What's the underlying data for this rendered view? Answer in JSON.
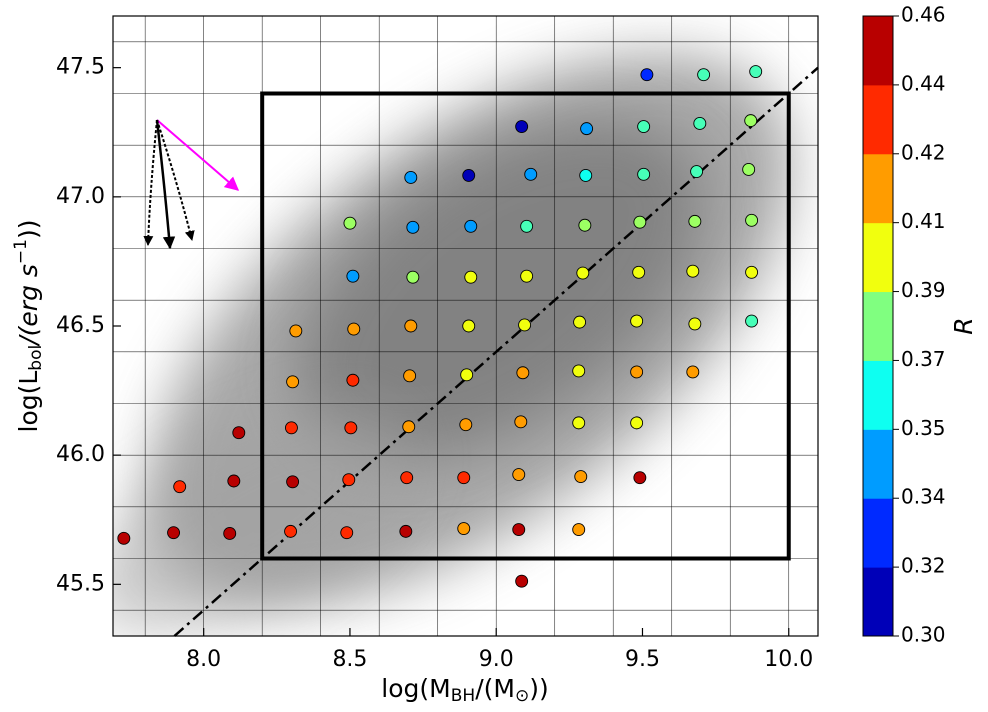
{
  "chart_data": {
    "type": "scatter",
    "xlabel": [
      "log(M",
      "BH",
      "/(M",
      "⊙",
      "))"
    ],
    "ylabel": [
      "log(L",
      "bol",
      "/(erg s",
      "−1",
      "))"
    ],
    "xlim": [
      7.69,
      10.1
    ],
    "ylim": [
      45.3,
      47.7
    ],
    "xticks": [
      {
        "value": 8,
        "label": "8.0"
      },
      8.5,
      {
        "value": 9,
        "label": "9.0"
      },
      9.5,
      {
        "value": 10,
        "label": "10.0"
      }
    ],
    "yticks": [
      45.5,
      {
        "value": 46,
        "label": "46.0"
      },
      46.5,
      {
        "value": 47,
        "label": "47.0"
      },
      47.5
    ],
    "xgrid": [
      7.8,
      8.0,
      8.2,
      8.4,
      8.6,
      8.8,
      9.0,
      9.2,
      9.4,
      9.6,
      9.8,
      10.0
    ],
    "ygrid": [
      45.4,
      45.6,
      45.8,
      46.0,
      46.2,
      46.4,
      46.6,
      46.8,
      47.0,
      47.2,
      47.4,
      47.6
    ],
    "grid": true,
    "box": {
      "x": [
        8.2,
        10.0
      ],
      "y": [
        45.6,
        47.4
      ]
    },
    "line": {
      "x": [
        7.9,
        10.1
      ],
      "y": [
        45.3,
        47.5
      ]
    },
    "colormap": "jet",
    "colorbar": {
      "label": "R",
      "ticks": [
        {
          "value": 0.3,
          "label": "0.30"
        },
        0.32,
        0.34,
        0.35,
        0.37,
        0.39,
        0.41,
        0.42,
        0.44,
        0.46
      ]
    },
    "points": {
      "x": [
        7.727,
        7.897,
        7.918,
        8.089,
        8.103,
        8.12,
        8.304,
        8.297,
        8.3,
        8.304,
        8.315,
        8.489,
        8.496,
        8.503,
        8.51,
        8.513,
        8.51,
        8.5,
        8.691,
        8.694,
        8.701,
        8.704,
        8.708,
        8.715,
        8.715,
        8.708,
        8.889,
        8.889,
        8.896,
        8.899,
        8.906,
        8.913,
        8.913,
        8.906,
        9.077,
        9.087,
        9.077,
        9.084,
        9.091,
        9.097,
        9.104,
        9.104,
        9.118,
        9.087,
        9.282,
        9.289,
        9.282,
        9.282,
        9.285,
        9.296,
        9.303,
        9.306,
        9.309,
        9.491,
        9.48,
        9.48,
        9.48,
        9.487,
        9.491,
        9.504,
        9.504,
        9.515,
        9.672,
        9.679,
        9.672,
        9.679,
        9.685,
        9.696,
        9.709,
        9.873,
        9.873,
        9.873,
        9.863,
        9.87,
        9.887
      ],
      "y": [
        45.678,
        45.7,
        45.878,
        45.697,
        45.9,
        46.087,
        45.897,
        45.705,
        46.106,
        46.284,
        46.481,
        45.7,
        45.905,
        46.106,
        46.29,
        46.488,
        46.693,
        46.898,
        45.705,
        45.913,
        46.11,
        46.307,
        46.5,
        46.689,
        46.882,
        47.075,
        45.716,
        45.913,
        46.118,
        46.311,
        46.5,
        46.689,
        46.886,
        47.083,
        45.712,
        45.512,
        45.925,
        46.129,
        46.319,
        46.504,
        46.693,
        46.886,
        47.087,
        47.272,
        45.712,
        45.917,
        46.125,
        46.326,
        46.515,
        46.705,
        46.89,
        47.083,
        47.264,
        45.913,
        46.125,
        46.322,
        46.519,
        46.708,
        46.902,
        47.087,
        47.272,
        47.473,
        46.322,
        46.508,
        46.712,
        46.905,
        47.098,
        47.284,
        47.473,
        46.708,
        46.519,
        46.909,
        47.106,
        47.295,
        47.485
      ],
      "R": [
        0.45,
        0.45,
        0.43,
        0.45,
        0.45,
        0.45,
        0.45,
        0.43,
        0.43,
        0.415,
        0.415,
        0.43,
        0.43,
        0.43,
        0.43,
        0.415,
        0.345,
        0.385,
        0.45,
        0.43,
        0.415,
        0.415,
        0.415,
        0.385,
        0.345,
        0.345,
        0.415,
        0.43,
        0.415,
        0.4,
        0.4,
        0.4,
        0.345,
        0.31,
        0.45,
        0.45,
        0.415,
        0.415,
        0.415,
        0.4,
        0.4,
        0.37,
        0.345,
        0.31,
        0.415,
        0.415,
        0.4,
        0.4,
        0.4,
        0.4,
        0.385,
        0.36,
        0.345,
        0.45,
        0.4,
        0.415,
        0.4,
        0.4,
        0.385,
        0.37,
        0.37,
        0.33,
        0.415,
        0.4,
        0.4,
        0.385,
        0.37,
        0.37,
        0.37,
        0.4,
        0.37,
        0.385,
        0.385,
        0.385,
        0.37
      ]
    }
  }
}
